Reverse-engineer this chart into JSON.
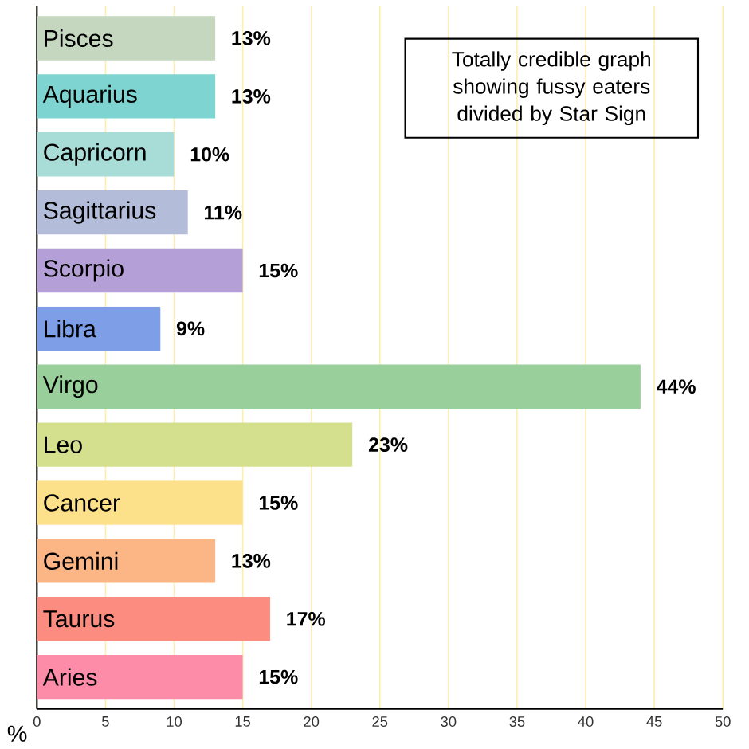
{
  "chart_data": {
    "type": "bar",
    "orientation": "horizontal",
    "title": "Totally credible graph showing fussy eaters divided by Star Sign",
    "xlabel": "%",
    "categories": [
      "Pisces",
      "Aquarius",
      "Capricorn",
      "Sagittarius",
      "Scorpio",
      "Libra",
      "Virgo",
      "Leo",
      "Cancer",
      "Gemini",
      "Taurus",
      "Aries"
    ],
    "values": [
      13,
      13,
      10,
      11,
      15,
      9,
      44,
      23,
      15,
      13,
      17,
      15
    ],
    "value_labels": [
      "13%",
      "13%",
      "10%",
      "11%",
      "15%",
      "9%",
      "44%",
      "23%",
      "15%",
      "13%",
      "17%",
      "15%"
    ],
    "colors": [
      "#c5d8bf",
      "#7dd4d0",
      "#a8dcd6",
      "#b3bcd9",
      "#b4a0d6",
      "#7e9fe8",
      "#98cf9a",
      "#d4e08d",
      "#fde08a",
      "#fcb584",
      "#fc8b80",
      "#fc8ca8"
    ],
    "xlim": [
      0,
      50
    ],
    "xticks": [
      0,
      5,
      10,
      15,
      20,
      25,
      30,
      35,
      40,
      45,
      50
    ],
    "grid": "x"
  }
}
